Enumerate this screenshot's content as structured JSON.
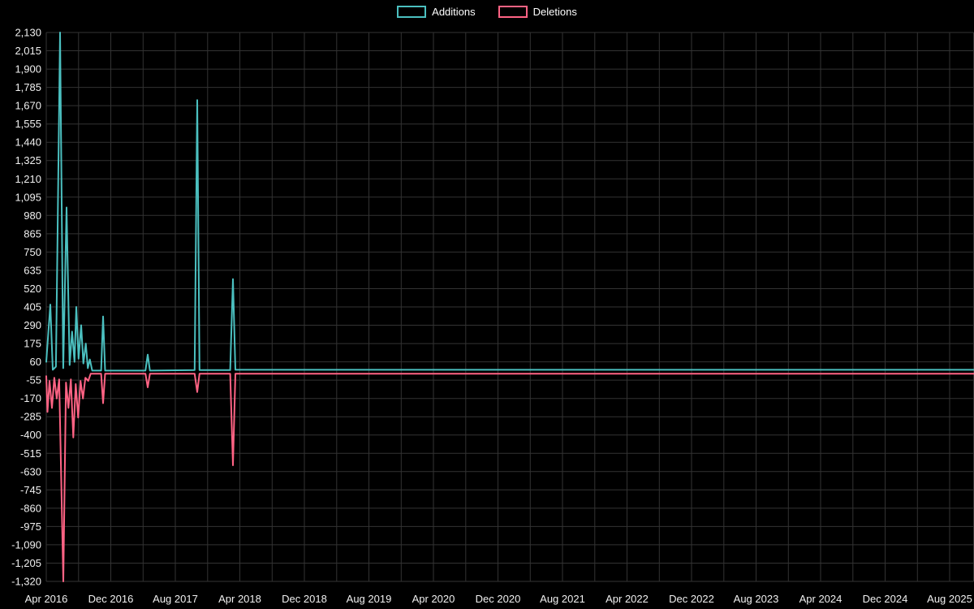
{
  "chart_data": {
    "type": "line",
    "title": "",
    "legend_position": "top",
    "background": "#000000",
    "grid": true,
    "grid_color": "#333333",
    "text_color": "#f0f0f0",
    "x_axis": {
      "unit": "months since Apr 2016",
      "tick_labels": [
        "Apr 2016",
        "Dec 2016",
        "Aug 2017",
        "Apr 2018",
        "Dec 2018",
        "Aug 2019",
        "Apr 2020",
        "Dec 2020",
        "Aug 2021",
        "Apr 2022",
        "Dec 2022",
        "Aug 2023",
        "Apr 2024",
        "Dec 2024",
        "Aug 2025"
      ],
      "tick_months": [
        0,
        8,
        16,
        24,
        32,
        40,
        48,
        56,
        64,
        72,
        80,
        88,
        96,
        104,
        112
      ],
      "grid_step_months": 4,
      "range_months": [
        0,
        115
      ]
    },
    "y_axis": {
      "min": -1320,
      "max": 2130,
      "tick_step": 115,
      "tick_labels": [
        "2,130",
        "2,015",
        "1,900",
        "1,785",
        "1,670",
        "1,555",
        "1,440",
        "1,325",
        "1,210",
        "1,095",
        "980",
        "865",
        "750",
        "635",
        "520",
        "405",
        "290",
        "175",
        "60",
        "-55",
        "-170",
        "-285",
        "-400",
        "-515",
        "-630",
        "-745",
        "-860",
        "-975",
        "-1,090",
        "-1,205",
        "-1,320"
      ]
    },
    "series": [
      {
        "name": "Additions",
        "color": "#4bc0c0",
        "points": [
          [
            0,
            60
          ],
          [
            0.5,
            420
          ],
          [
            0.8,
            10
          ],
          [
            1.2,
            30
          ],
          [
            1.71,
            2130
          ],
          [
            2.1,
            20
          ],
          [
            2.52,
            1030
          ],
          [
            2.9,
            40
          ],
          [
            3.2,
            250
          ],
          [
            3.5,
            60
          ],
          [
            3.72,
            405
          ],
          [
            4.0,
            80
          ],
          [
            4.33,
            290
          ],
          [
            4.6,
            50
          ],
          [
            4.9,
            175
          ],
          [
            5.15,
            20
          ],
          [
            5.4,
            75
          ],
          [
            5.7,
            5
          ],
          [
            6.8,
            5
          ],
          [
            7.04,
            345
          ],
          [
            7.3,
            5
          ],
          [
            12.3,
            5
          ],
          [
            12.58,
            105
          ],
          [
            12.85,
            5
          ],
          [
            18.4,
            8
          ],
          [
            18.72,
            1705
          ],
          [
            19.0,
            8
          ],
          [
            22.8,
            8
          ],
          [
            23.14,
            580
          ],
          [
            23.45,
            10
          ],
          [
            115,
            10
          ]
        ]
      },
      {
        "name": "Deletions",
        "color": "#ff6384",
        "points": [
          [
            0,
            -30
          ],
          [
            0.15,
            -255
          ],
          [
            0.4,
            -60
          ],
          [
            0.7,
            -230
          ],
          [
            1.0,
            -40
          ],
          [
            1.3,
            -170
          ],
          [
            1.6,
            -50
          ],
          [
            2.11,
            -1320
          ],
          [
            2.45,
            -70
          ],
          [
            2.75,
            -230
          ],
          [
            3.05,
            -50
          ],
          [
            3.35,
            -415
          ],
          [
            3.65,
            -80
          ],
          [
            3.95,
            -290
          ],
          [
            4.25,
            -60
          ],
          [
            4.55,
            -170
          ],
          [
            4.85,
            -40
          ],
          [
            5.2,
            -60
          ],
          [
            5.5,
            -15
          ],
          [
            6.8,
            -15
          ],
          [
            7.04,
            -200
          ],
          [
            7.3,
            -15
          ],
          [
            12.3,
            -15
          ],
          [
            12.58,
            -100
          ],
          [
            12.85,
            -15
          ],
          [
            18.4,
            -15
          ],
          [
            18.72,
            -130
          ],
          [
            19.0,
            -15
          ],
          [
            22.8,
            -15
          ],
          [
            23.14,
            -590
          ],
          [
            23.45,
            -15
          ],
          [
            115,
            -15
          ]
        ]
      }
    ]
  }
}
